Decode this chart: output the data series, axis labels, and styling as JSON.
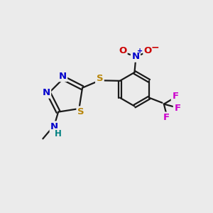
{
  "bg_color": "#ebebeb",
  "bond_color": "#1a1a1a",
  "S_color": "#b8860b",
  "N_color": "#0000cc",
  "O_color": "#cc0000",
  "F_color": "#cc00cc",
  "NH_N_color": "#0000cc",
  "NH_H_color": "#008080",
  "figsize": [
    3.0,
    3.0
  ],
  "dpi": 100,
  "xlim": [
    0,
    10
  ],
  "ylim": [
    0,
    10
  ]
}
